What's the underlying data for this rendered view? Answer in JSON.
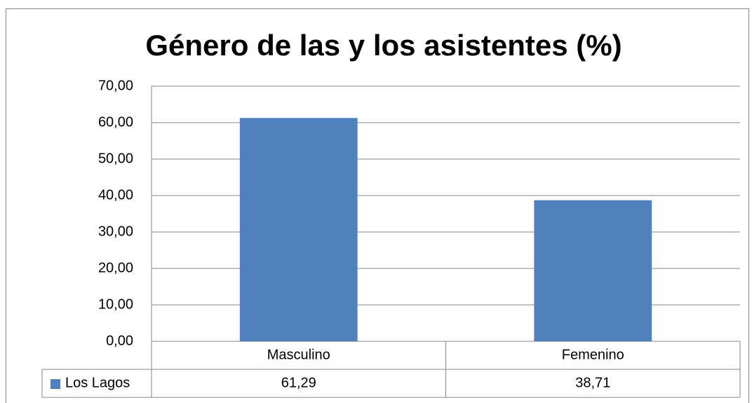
{
  "chart_data": {
    "type": "bar",
    "title": "Género de las y los asistentes (%)",
    "categories": [
      "Masculino",
      "Femenino"
    ],
    "series": [
      {
        "name": "Los Lagos",
        "color": "#4f81bd",
        "values": [
          61.29,
          38.71
        ],
        "value_labels": [
          "61,29",
          "38,71"
        ]
      }
    ],
    "ylim": [
      0,
      70
    ],
    "yticks": [
      {
        "value": 0,
        "label": "0,00"
      },
      {
        "value": 10,
        "label": "10,00"
      },
      {
        "value": 20,
        "label": "20,00"
      },
      {
        "value": 30,
        "label": "30,00"
      },
      {
        "value": 40,
        "label": "40,00"
      },
      {
        "value": 50,
        "label": "50,00"
      },
      {
        "value": 60,
        "label": "60,00"
      },
      {
        "value": 70,
        "label": "70,00"
      }
    ],
    "grid": true
  }
}
